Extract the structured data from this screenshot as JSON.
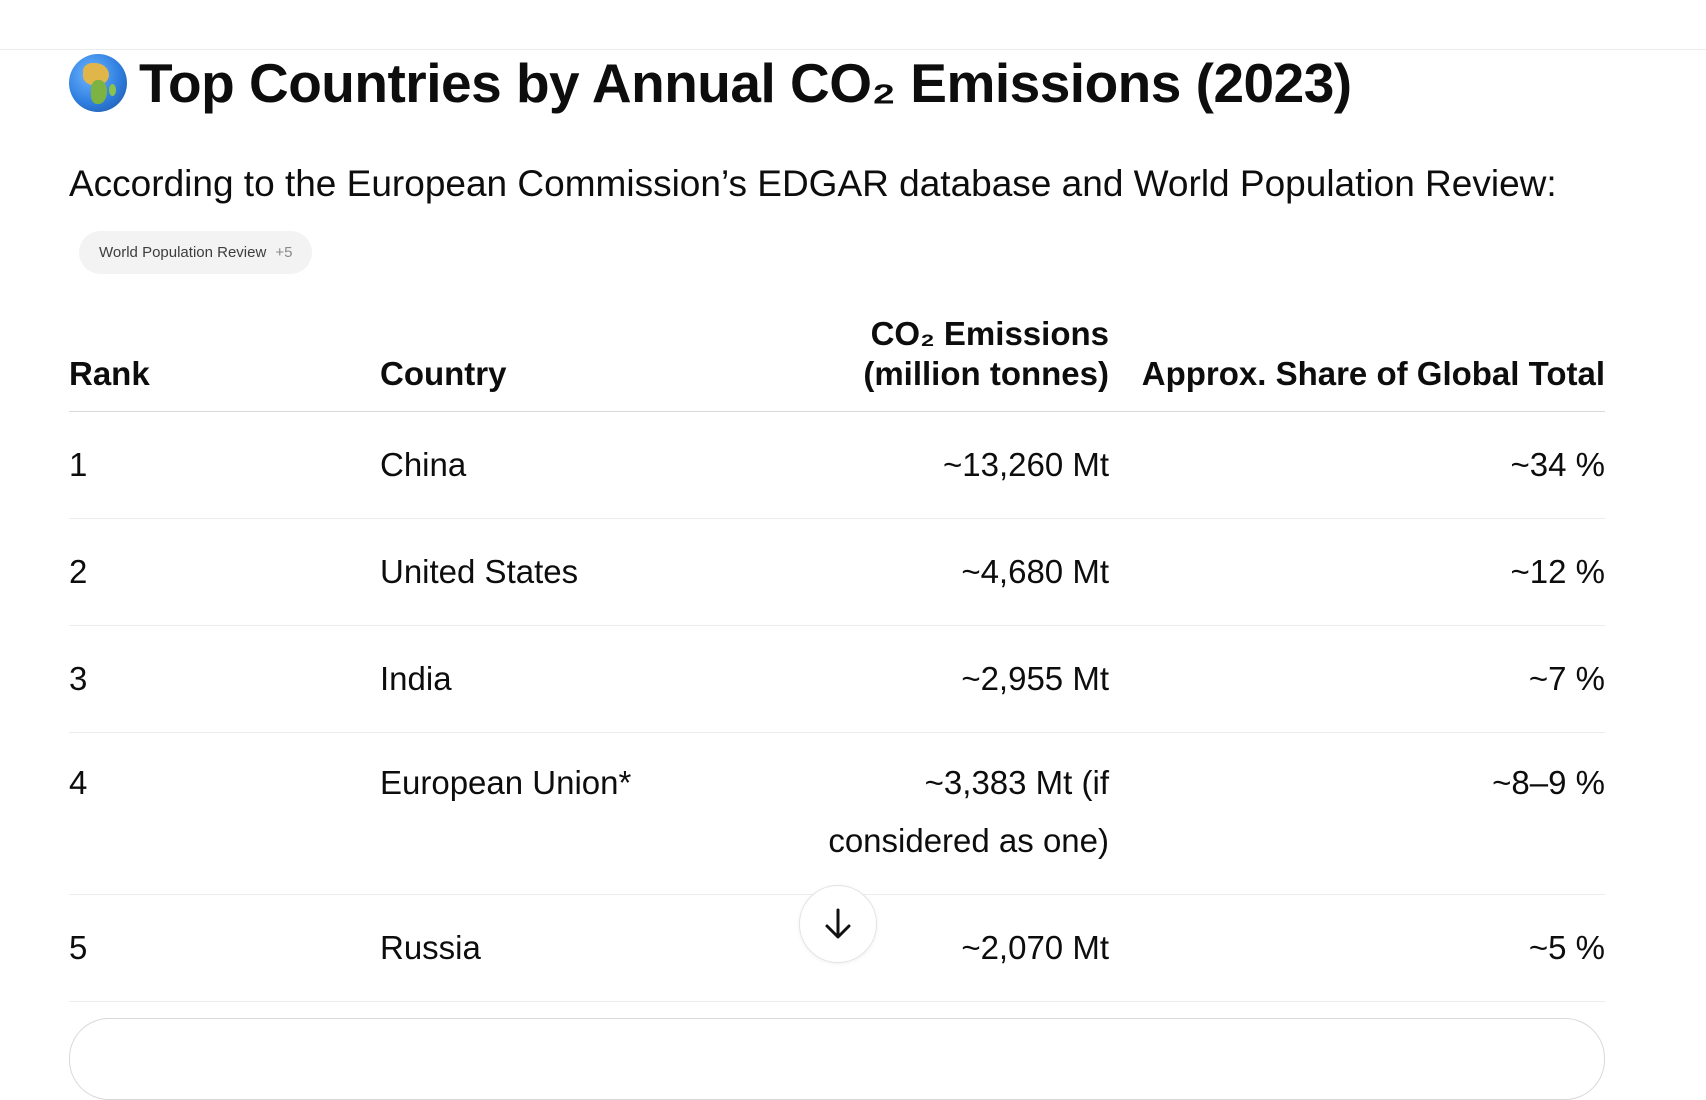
{
  "heading": {
    "title": "Top Countries by Annual CO₂ Emissions (2023)",
    "icon": "globe-africa-icon"
  },
  "intro": "According to the European Commission’s EDGAR database and World Population Review:",
  "source_chip": {
    "label": "World Population Review",
    "more": "+5"
  },
  "table": {
    "headers": {
      "rank": "Rank",
      "country": "Country",
      "emissions": "CO₂ Emissions (million tonnes)",
      "share": "Approx. Share of Global Total"
    },
    "rows": [
      {
        "rank": "1",
        "country": "China",
        "emissions": "~13,260 Mt",
        "share": "~34 %"
      },
      {
        "rank": "2",
        "country": "United States",
        "emissions": "~4,680 Mt",
        "share": "~12 %"
      },
      {
        "rank": "3",
        "country": "India",
        "emissions": "~2,955 Mt",
        "share": "~7 %"
      },
      {
        "rank": "4",
        "country": "European Union*",
        "emissions": "~3,383 Mt (if considered as one)",
        "share": "~8–9 %"
      },
      {
        "rank": "5",
        "country": "Russia",
        "emissions": "~2,070 Mt",
        "share": "~5 %"
      }
    ]
  },
  "scroll_button": {
    "icon": "arrow-down-icon"
  }
}
